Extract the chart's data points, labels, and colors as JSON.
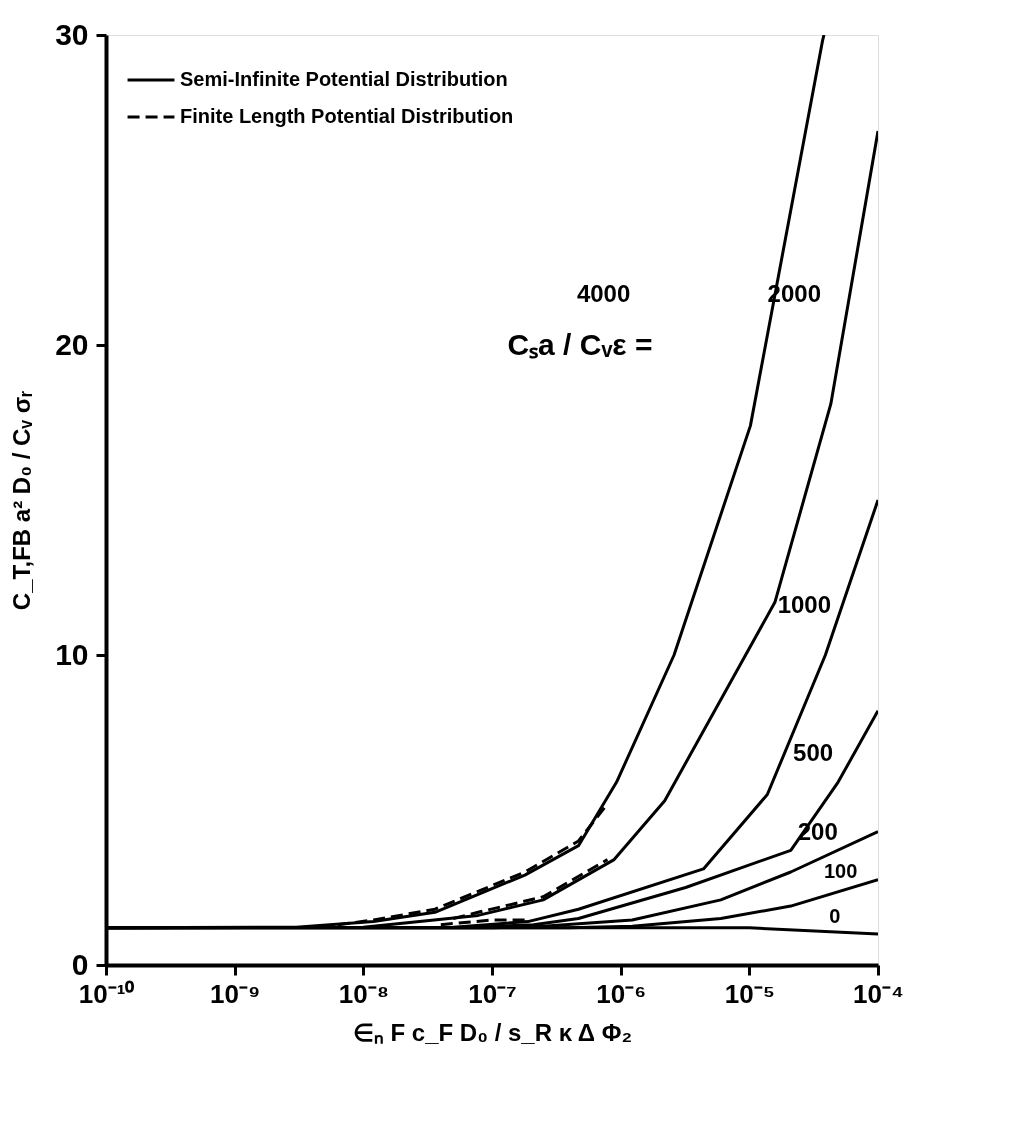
{
  "chart_data": {
    "type": "line",
    "xlabel": "∈ₙ F c_F D₀ / s_R κ Δ Φ₂",
    "ylabel": "C_T,FB a² D₀ / Cᵥ σᵣ",
    "log": "x",
    "xlim": [
      1e-10,
      0.0001
    ],
    "ylim": [
      0,
      30
    ],
    "xticks": [
      {
        "value": 1e-10,
        "label": "10⁻¹⁰"
      },
      {
        "value": 1e-09,
        "label": "10⁻⁹"
      },
      {
        "value": 1e-08,
        "label": "10⁻⁸"
      },
      {
        "value": 1e-07,
        "label": "10⁻⁷"
      },
      {
        "value": 1e-06,
        "label": "10⁻⁶"
      },
      {
        "value": 1e-05,
        "label": "10⁻⁵"
      },
      {
        "value": 0.0001,
        "label": "10⁻⁴"
      }
    ],
    "yticks": [
      0,
      10,
      20,
      30
    ],
    "grid": false,
    "legend": "top left",
    "marker": "none",
    "series": [
      {
        "name": "Semi-Infinite Potential Distribution",
        "color": "#000000",
        "line_style": "solid",
        "x": [
          1e-10,
          3e-09,
          1.2e-08,
          3.6e-08,
          1.8e-07,
          4.7e-07,
          9.3e-07,
          2.6e-06,
          1.02e-05,
          3.7e-05,
          3.8e-05
        ],
        "values": [
          1.2,
          1.22,
          1.4,
          1.7,
          2.9,
          3.85,
          5.9,
          10,
          17.4,
          29.8,
          30
        ]
      },
      {
        "color": "#000000",
        "line_style": "solid",
        "x": [
          1e-10,
          1e-08,
          7.8e-08,
          2.5e-07,
          8.9e-07,
          2.2e-06,
          1.58e-05,
          4.3e-05,
          0.0001
        ],
        "values": [
          1.2,
          1.22,
          1.6,
          2.1,
          3.4,
          5.3,
          11.7,
          18.1,
          26.9
        ]
      },
      {
        "color": "#000000",
        "line_style": "solid",
        "x": [
          1e-10,
          5e-08,
          1.9e-07,
          4.7e-07,
          4.4e-06,
          1.38e-05,
          3.9e-05,
          0.0001
        ],
        "values": [
          1.2,
          1.22,
          1.4,
          1.8,
          3.1,
          5.5,
          10,
          15
        ]
      },
      {
        "color": "#000000",
        "line_style": "solid",
        "x": [
          1e-10,
          8e-08,
          2.1e-07,
          4.7e-07,
          3.2e-06,
          2.1e-05,
          4.9e-05,
          0.0001
        ],
        "values": [
          1.2,
          1.22,
          1.3,
          1.5,
          2.5,
          3.7,
          5.9,
          8.2
        ]
      },
      {
        "color": "#000000",
        "line_style": "solid",
        "x": [
          1e-10,
          1e-07,
          2.5e-07,
          1.23e-06,
          6e-06,
          2.1e-05,
          0.0001
        ],
        "values": [
          1.2,
          1.2,
          1.25,
          1.45,
          2.1,
          3.0,
          4.3
        ]
      },
      {
        "color": "#000000",
        "line_style": "solid",
        "x": [
          1e-10,
          4e-07,
          1.23e-06,
          6e-06,
          2.1e-05,
          0.0001
        ],
        "values": [
          1.2,
          1.2,
          1.25,
          1.5,
          1.9,
          2.75
        ]
      },
      {
        "color": "#000000",
        "line_style": "solid",
        "x": [
          1e-10,
          1e-05,
          0.0001
        ],
        "values": [
          1.2,
          1.2,
          1.0
        ]
      },
      {
        "name": "Finite Length Potential Distribution",
        "color": "#000000",
        "line_style": "dashed",
        "x": [
          6.3e-09,
          1.2e-08,
          3.6e-08,
          1.8e-07,
          4.7e-07,
          7.9e-07
        ],
        "values": [
          1.3,
          1.45,
          1.8,
          3.0,
          4.0,
          5.2
        ]
      },
      {
        "color": "#000000",
        "line_style": "dashed",
        "x": [
          5e-08,
          7.8e-08,
          2.5e-07,
          7.9e-07
        ],
        "values": [
          1.5,
          1.7,
          2.2,
          3.4
        ]
      },
      {
        "color": "#000000",
        "line_style": "dashed",
        "x": [
          4e-08,
          1e-07,
          2e-07
        ],
        "values": [
          1.3,
          1.45,
          1.45
        ]
      }
    ],
    "annotations": [
      "Cₛa / Cᵥε =",
      "4000",
      "2000",
      "1000",
      "500",
      "200",
      "100",
      "0"
    ]
  }
}
